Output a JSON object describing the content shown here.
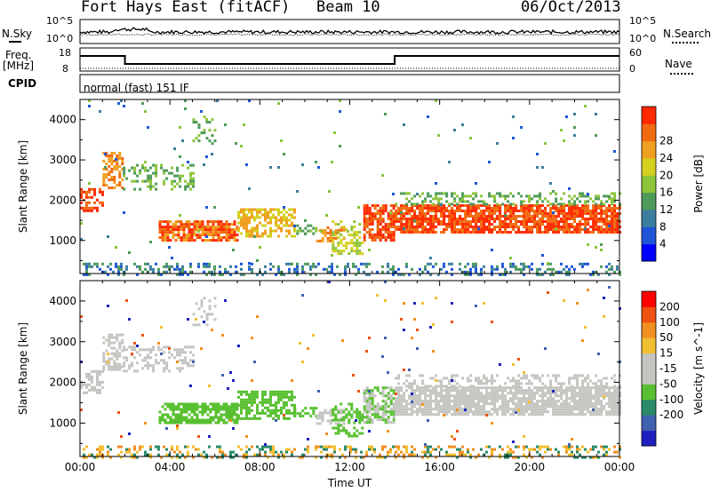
{
  "header": {
    "station": "Fort Hays East (fitACF)",
    "beam": "Beam 10",
    "date": "06/Oct/2013"
  },
  "noise_panel": {
    "left_label": "N.Sky",
    "right_label": "N.Search",
    "left_ticks": [
      "10^5",
      "10^0"
    ],
    "right_ticks": [
      "10^5",
      "10^0"
    ]
  },
  "freq_panel": {
    "left_label_line1": "Freq.",
    "left_label_line2": "[MHz]",
    "left_ticks": [
      "18",
      "8"
    ],
    "right_label": "Nave",
    "right_ticks": [
      "60",
      "0"
    ]
  },
  "cpid": {
    "label": "CPID",
    "mode": "normal (fast) 151 IF"
  },
  "chart_data": [
    {
      "type": "heatmap",
      "name_hint": "power",
      "ylabel": "Slant Range [km]",
      "yticks": [
        1000,
        2000,
        3000,
        4000
      ],
      "ylim": [
        180,
        4500
      ],
      "xlim": [
        0,
        24
      ],
      "colorbar": {
        "label": "Power [dB]",
        "ticks": [
          "4",
          "8",
          "12",
          "16",
          "20",
          "24",
          "28"
        ],
        "colors": [
          "#0000ff",
          "#1e55d8",
          "#3c7ea0",
          "#4e9a5a",
          "#8cc43a",
          "#d4d020",
          "#f0a020",
          "#f06a10",
          "#ff2a00"
        ]
      }
    },
    {
      "type": "heatmap",
      "name_hint": "velocity",
      "ylabel": "Slant Range [km]",
      "yticks": [
        1000,
        2000,
        3000,
        4000
      ],
      "ylim": [
        180,
        4500
      ],
      "xlim": [
        0,
        24
      ],
      "xticks": [
        "00:00",
        "04:00",
        "08:00",
        "12:00",
        "16:00",
        "20:00",
        "00:00"
      ],
      "xlabel": "Time UT",
      "colorbar": {
        "label": "Velocity [m s^-1]",
        "ticks": [
          "200",
          "100",
          "50",
          "15",
          "-15",
          "-50",
          "-100",
          "-200"
        ],
        "colors": [
          "#2020c0",
          "#4060b0",
          "#2a8a6a",
          "#58c030",
          "#c4c4c0",
          "#c4c4c0",
          "#f0c030",
          "#f09020",
          "#f05010",
          "#ff0000"
        ]
      }
    }
  ]
}
